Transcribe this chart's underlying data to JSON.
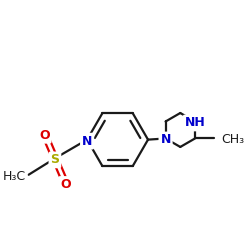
{
  "bg_color": "#ffffff",
  "bond_color": "#1a1a1a",
  "bond_width": 1.6,
  "N_color": "#0000cc",
  "O_color": "#dd0000",
  "S_color": "#aaaa00",
  "C_color": "#1a1a1a",
  "font_size": 9,
  "figsize": [
    2.5,
    2.5
  ],
  "dpi": 100,
  "xlim": [
    -1.2,
    2.8
  ],
  "ylim": [
    -1.6,
    1.8
  ]
}
